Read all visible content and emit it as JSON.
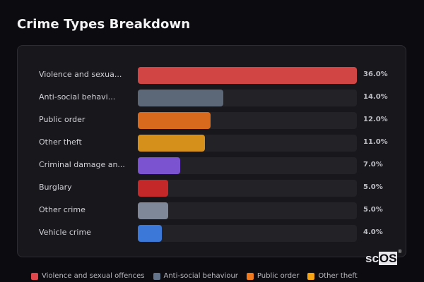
{
  "title": "Crime Types Breakdown",
  "chart_data": {
    "type": "bar",
    "orientation": "horizontal",
    "title": "Crime Types Breakdown",
    "categories": [
      "Violence and sexual offences",
      "Anti-social behaviour",
      "Public order",
      "Other theft",
      "Criminal damage and arson",
      "Burglary",
      "Other crime",
      "Vehicle crime"
    ],
    "display_labels": [
      "Violence and sexua...",
      "Anti-social behavi...",
      "Public order",
      "Other theft",
      "Criminal damage an...",
      "Burglary",
      "Other crime",
      "Vehicle crime"
    ],
    "values": [
      36.0,
      14.0,
      12.0,
      11.0,
      7.0,
      5.0,
      5.0,
      4.0
    ],
    "value_labels": [
      "36.0%",
      "14.0%",
      "12.0%",
      "11.0%",
      "7.0%",
      "5.0%",
      "5.0%",
      "4.0%"
    ],
    "colors": [
      "#d24545",
      "#5c6778",
      "#d86a1e",
      "#d4901a",
      "#7b52cf",
      "#c42828",
      "#7e8898",
      "#3b78d8"
    ],
    "xlim": [
      0,
      36
    ],
    "legend_position": "bottom",
    "grid": false
  },
  "legend": [
    {
      "label": "Violence and sexual offences",
      "color": "#e0474c"
    },
    {
      "label": "Anti-social behaviour",
      "color": "#64748b"
    },
    {
      "label": "Public order",
      "color": "#f07a1f"
    },
    {
      "label": "Other theft",
      "color": "#f5a516"
    }
  ],
  "logo": {
    "text_a": "sc",
    "text_b": "OS",
    "reg": "®"
  }
}
